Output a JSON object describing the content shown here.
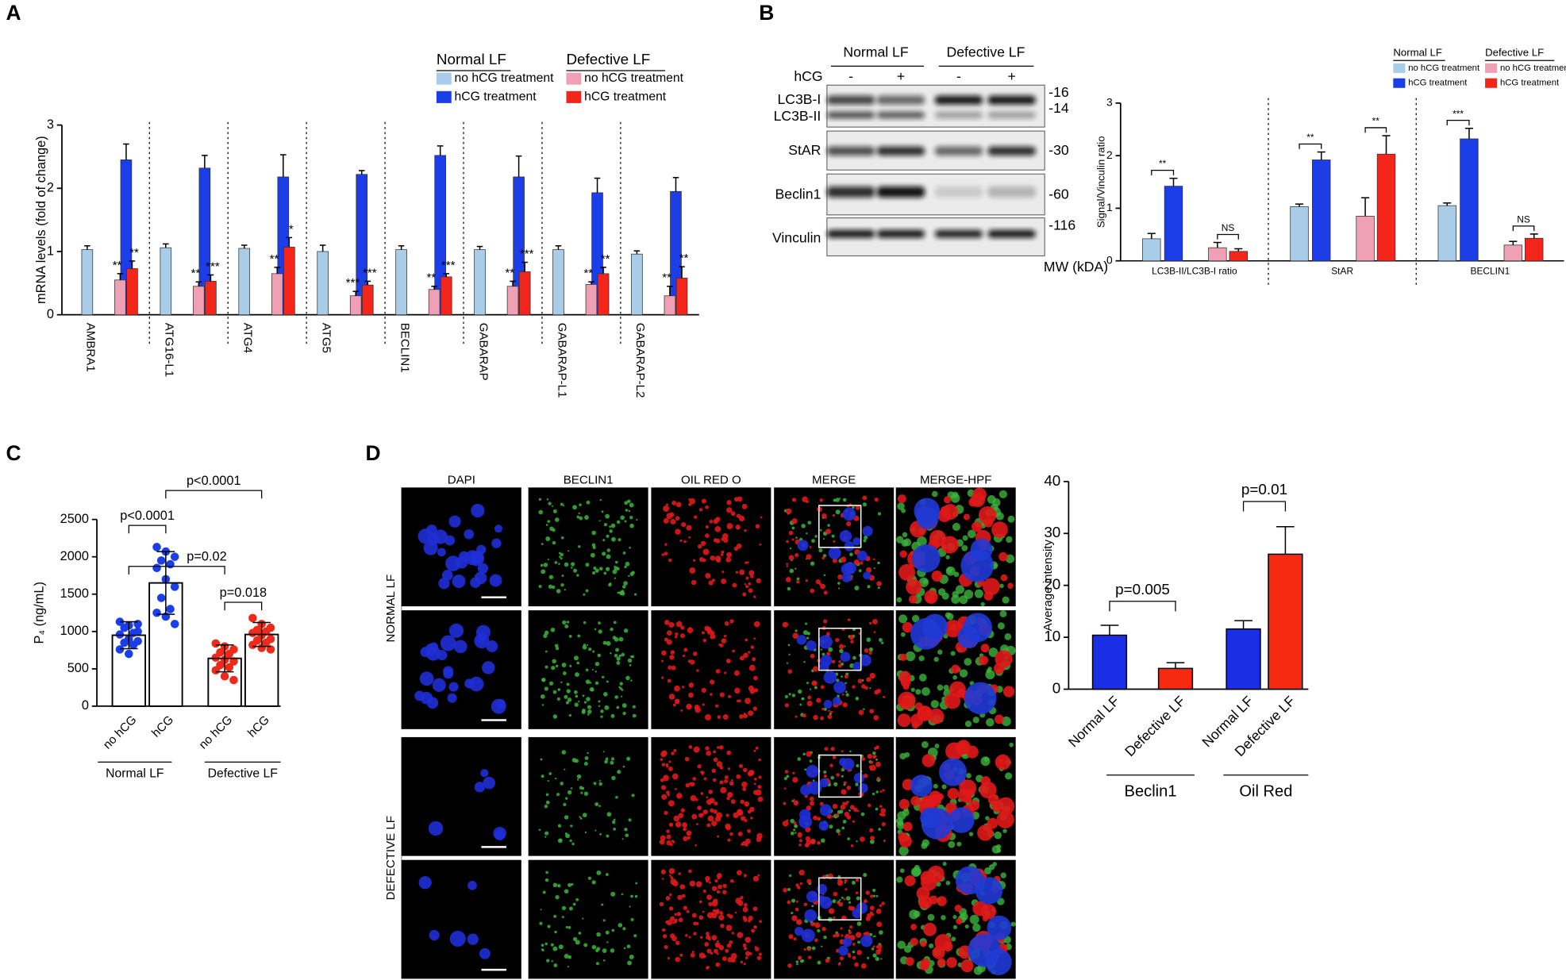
{
  "chart_data": [
    {
      "panel": "A",
      "type": "bar",
      "ylabel": "mRNA levels (fold of change)",
      "ylim": [
        0,
        3
      ],
      "yticks": [
        0,
        1,
        2,
        3
      ],
      "legend_groups": [
        "Normal LF",
        "Defective LF"
      ],
      "categories": [
        "AMBRA1",
        "ATG16-L1",
        "ATG4",
        "ATG5",
        "BECLIN1",
        "GABARAP",
        "GABARAP-L1",
        "GABARAP-L2"
      ],
      "series": [
        {
          "name": "no hCG treatment",
          "color": "#a9cce8",
          "values": [
            1.03,
            1.06,
            1.05,
            1.0,
            1.03,
            1.03,
            1.03,
            0.96
          ],
          "errors": [
            0.06,
            0.06,
            0.05,
            0.1,
            0.06,
            0.05,
            0.06,
            0.05
          ]
        },
        {
          "name": "hCG treatment",
          "color": "#1c3ee8",
          "values": [
            2.45,
            2.32,
            2.18,
            2.22,
            2.52,
            2.18,
            1.93,
            1.95
          ],
          "errors": [
            0.25,
            0.2,
            0.35,
            0.06,
            0.15,
            0.33,
            0.23,
            0.22
          ]
        },
        {
          "name": "no hCG treatment",
          "color": "#f0a0b4",
          "values": [
            0.55,
            0.45,
            0.65,
            0.3,
            0.4,
            0.45,
            0.48,
            0.3
          ],
          "errors": [
            0.1,
            0.07,
            0.1,
            0.07,
            0.05,
            0.08,
            0.04,
            0.15
          ]
        },
        {
          "name": "hCG treatment",
          "color": "#f4251a",
          "values": [
            0.73,
            0.53,
            1.07,
            0.47,
            0.6,
            0.68,
            0.65,
            0.58
          ],
          "errors": [
            0.12,
            0.1,
            0.15,
            0.06,
            0.05,
            0.15,
            0.1,
            0.18
          ]
        }
      ],
      "significance": [
        [
          "**",
          "**"
        ],
        [
          "**",
          "***"
        ],
        [
          "**",
          "*"
        ],
        [
          "***",
          "***"
        ],
        [
          "**",
          "***"
        ],
        [
          "**",
          "***"
        ],
        [
          "**",
          "**"
        ],
        [
          "**",
          "**"
        ]
      ]
    },
    {
      "panel": "B",
      "type": "bar",
      "ylabel": "Signal/Vinculin ratio",
      "ylim": [
        0,
        3
      ],
      "yticks": [
        0,
        1,
        2,
        3
      ],
      "legend_groups": [
        "Normal LF",
        "Defective LF"
      ],
      "categories": [
        "LC3B-II/LC3B-I ratio",
        "StAR",
        "BECLIN1"
      ],
      "series": [
        {
          "name": "no hCG treatment",
          "color": "#a9cce8",
          "values": [
            0.42,
            1.03,
            1.05
          ],
          "errors": [
            0.1,
            0.05,
            0.05
          ]
        },
        {
          "name": "hCG treatment",
          "color": "#1c3ee8",
          "values": [
            1.42,
            1.92,
            2.32
          ],
          "errors": [
            0.15,
            0.15,
            0.2
          ]
        },
        {
          "name": "no hCG treatment",
          "color": "#f0a0b4",
          "values": [
            0.25,
            0.85,
            0.3
          ],
          "errors": [
            0.1,
            0.35,
            0.07
          ]
        },
        {
          "name": "hCG treatment",
          "color": "#f4251a",
          "values": [
            0.18,
            2.03,
            0.43
          ],
          "errors": [
            0.05,
            0.35,
            0.08
          ]
        }
      ],
      "significance": [
        [
          "**",
          "NS"
        ],
        [
          "**",
          "**"
        ],
        [
          "***",
          "NS"
        ]
      ]
    },
    {
      "panel": "C",
      "type": "bar",
      "ylabel": "P₄ (ng/mL)",
      "ylim": [
        0,
        2500
      ],
      "yticks": [
        0,
        500,
        1000,
        1500,
        2000,
        2500
      ],
      "categories": [
        "no hCG",
        "hCG",
        "no hCG",
        "hCG"
      ],
      "groups": [
        "Normal LF",
        "Defective LF"
      ],
      "colors": [
        "#1a3ee8",
        "#1a3ee8",
        "#ee2a1a",
        "#ee2a1a"
      ],
      "values": [
        950,
        1650,
        640,
        960
      ],
      "errors": [
        180,
        420,
        180,
        160
      ],
      "points": [
        [
          1130,
          1080,
          1000,
          1050,
          980,
          960,
          900,
          870,
          850,
          820,
          760,
          700,
          1100
        ],
        [
          2130,
          2070,
          2000,
          1950,
          1900,
          1850,
          1700,
          1600,
          1450,
          1300,
          1250,
          1200,
          1100
        ],
        [
          840,
          800,
          760,
          720,
          700,
          650,
          620,
          600,
          550,
          520,
          480,
          400,
          350
        ],
        [
          1180,
          1100,
          1050,
          1020,
          1000,
          980,
          950,
          900,
          880,
          850,
          820,
          780,
          760
        ]
      ],
      "annotations": [
        "p<0.0001",
        "p=0.02",
        "p=0.018",
        "p<0.0001"
      ]
    },
    {
      "panel": "D",
      "type": "bar",
      "ylabel": "Average intensity",
      "ylim": [
        0,
        40
      ],
      "yticks": [
        0,
        10,
        20,
        30,
        40
      ],
      "categories": [
        "Normal LF",
        "Defective LF",
        "Normal LF",
        "Defective LF"
      ],
      "groups": [
        "Beclin1",
        "Oil Red"
      ],
      "colors": [
        "#1a2ee6",
        "#f52a10",
        "#1a2ee6",
        "#f52a10"
      ],
      "values": [
        10.4,
        4.0,
        11.6,
        26.0
      ],
      "errors": [
        1.9,
        1.1,
        1.6,
        5.3
      ],
      "annotations": [
        "p=0.005",
        "p=0.01"
      ]
    }
  ],
  "blot": {
    "groups": [
      "Normal LF",
      "Defective LF"
    ],
    "treatment_label": "hCG",
    "lanes": [
      "-",
      "+",
      "-",
      "+"
    ],
    "rows": [
      "LC3B-I",
      "LC3B-II",
      "StAR",
      "Beclin1",
      "Vinculin"
    ],
    "markers": [
      "-16",
      "-14",
      "-30",
      "-60",
      "-116"
    ],
    "mw_label": "MW (kDA)"
  },
  "microscopy": {
    "columns": [
      "DAPI",
      "BECLIN1",
      "OIL RED O",
      "MERGE",
      "MERGE-HPF"
    ],
    "row_groups": [
      "NORMAL LF",
      "DEFECTIVE LF"
    ]
  }
}
